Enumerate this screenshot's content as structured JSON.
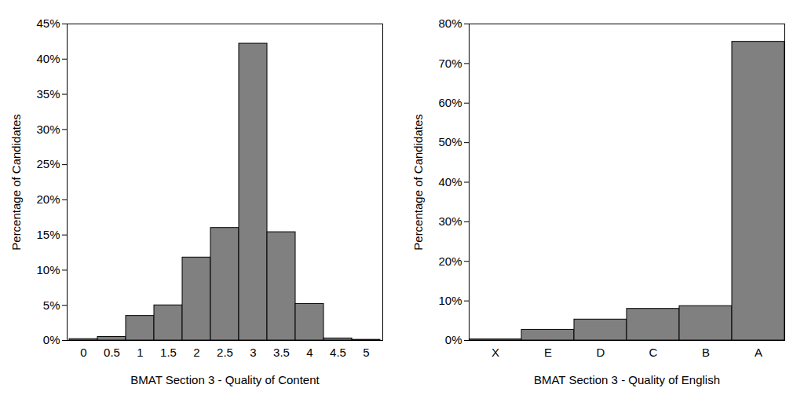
{
  "chart_data": [
    {
      "type": "bar",
      "x_label": "BMAT Section 3 - Quality of Content",
      "y_label": "Percentage of Candidates",
      "categories": [
        "0",
        "0.5",
        "1",
        "1.5",
        "2",
        "2.5",
        "3",
        "3.5",
        "4",
        "4.5",
        "5"
      ],
      "values": [
        0.2,
        0.5,
        3.5,
        5.0,
        11.8,
        16.0,
        42.2,
        15.4,
        5.2,
        0.3,
        0.1
      ],
      "color": "#808080",
      "ylim": [
        0,
        45
      ],
      "yticks": [
        {
          "value": 0,
          "label": "0%"
        },
        {
          "value": 5,
          "label": "5%"
        },
        {
          "value": 10,
          "label": "10%"
        },
        {
          "value": 15,
          "label": "15%"
        },
        {
          "value": 20,
          "label": "20%"
        },
        {
          "value": 25,
          "label": "25%"
        },
        {
          "value": 30,
          "label": "30%"
        },
        {
          "value": 35,
          "label": "35%"
        },
        {
          "value": 40,
          "label": "40%"
        },
        {
          "value": 45,
          "label": "45%"
        }
      ]
    },
    {
      "type": "bar",
      "x_label": "BMAT Section 3 - Quality of English",
      "y_label": "Percentage of Candidates",
      "categories": [
        "X",
        "E",
        "D",
        "C",
        "B",
        "A"
      ],
      "values": [
        0.3,
        2.7,
        5.3,
        8.0,
        8.7,
        75.5
      ],
      "color": "#808080",
      "ylim": [
        0,
        80
      ],
      "yticks": [
        {
          "value": 0,
          "label": "0%"
        },
        {
          "value": 10,
          "label": "10%"
        },
        {
          "value": 20,
          "label": "20%"
        },
        {
          "value": 30,
          "label": "30%"
        },
        {
          "value": 40,
          "label": "40%"
        },
        {
          "value": 50,
          "label": "50%"
        },
        {
          "value": 60,
          "label": "60%"
        },
        {
          "value": 70,
          "label": "70%"
        },
        {
          "value": 80,
          "label": "80%"
        }
      ]
    }
  ]
}
